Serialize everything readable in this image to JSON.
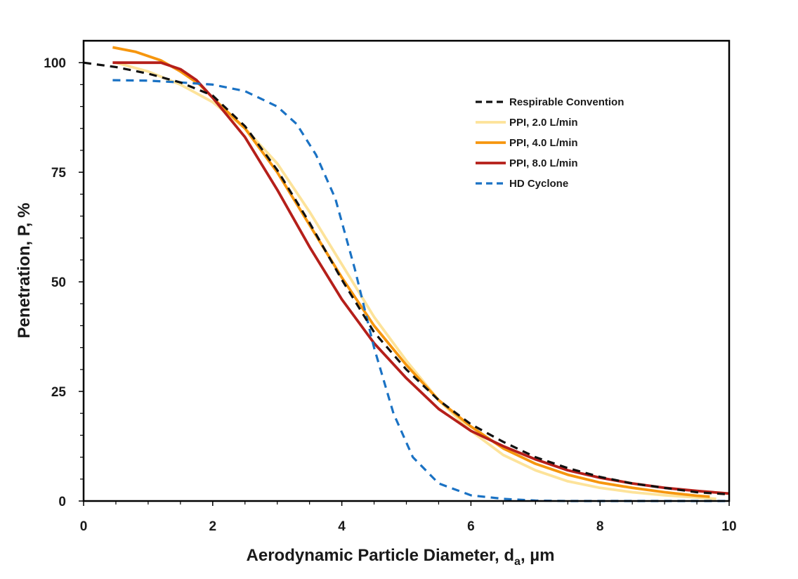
{
  "chart_data": {
    "type": "line",
    "xlabel": "Aerodynamic Particle Diameter, d",
    "xlabel_subscript": "a",
    "xlabel_unit": ", µm",
    "ylabel": "Penetration, P, %",
    "xlim": [
      0,
      10
    ],
    "ylim": [
      0,
      105
    ],
    "xticks": [
      "0",
      "2",
      "4",
      "6",
      "8",
      "10"
    ],
    "yticks": [
      "0",
      "25",
      "50",
      "75",
      "100"
    ],
    "grid": false,
    "legend_position": "top-right",
    "series": [
      {
        "name": "PPI, 2.0 L/min",
        "color": "#FDE39A",
        "dash": "solid",
        "points": [
          [
            0.5,
            100
          ],
          [
            1.0,
            98
          ],
          [
            1.5,
            95
          ],
          [
            2.0,
            91
          ],
          [
            2.5,
            85
          ],
          [
            3.0,
            77
          ],
          [
            3.5,
            66
          ],
          [
            4.0,
            54
          ],
          [
            4.5,
            42
          ],
          [
            5.0,
            32
          ],
          [
            5.5,
            23
          ],
          [
            6.0,
            16
          ],
          [
            6.5,
            10.5
          ],
          [
            7.0,
            7
          ],
          [
            7.5,
            4.5
          ],
          [
            8.0,
            3
          ],
          [
            8.5,
            2
          ],
          [
            9.0,
            1.3
          ],
          [
            9.5,
            0.8
          ],
          [
            9.8,
            0.5
          ]
        ]
      },
      {
        "name": "PPI, 4.0 L/min",
        "color": "#F6960E",
        "dash": "solid",
        "points": [
          [
            0.45,
            103.5
          ],
          [
            0.8,
            102.5
          ],
          [
            1.2,
            100.5
          ],
          [
            1.5,
            98
          ],
          [
            1.8,
            95
          ],
          [
            2.0,
            92
          ],
          [
            2.5,
            85
          ],
          [
            3.0,
            75
          ],
          [
            3.5,
            63
          ],
          [
            4.0,
            51
          ],
          [
            4.5,
            40
          ],
          [
            5.0,
            31
          ],
          [
            5.5,
            23
          ],
          [
            6.0,
            17
          ],
          [
            6.5,
            12
          ],
          [
            7.0,
            8.5
          ],
          [
            7.5,
            6
          ],
          [
            8.0,
            4.2
          ],
          [
            8.5,
            3
          ],
          [
            9.0,
            2
          ],
          [
            9.5,
            1.2
          ],
          [
            9.7,
            1
          ]
        ]
      },
      {
        "name": "PPI, 8.0 L/min",
        "color": "#B51F1A",
        "dash": "solid",
        "points": [
          [
            0.45,
            100
          ],
          [
            0.8,
            100
          ],
          [
            1.2,
            100
          ],
          [
            1.5,
            98.5
          ],
          [
            1.75,
            96
          ],
          [
            2.0,
            92
          ],
          [
            2.5,
            83
          ],
          [
            3.0,
            71
          ],
          [
            3.5,
            58
          ],
          [
            4.0,
            46
          ],
          [
            4.5,
            36
          ],
          [
            5.0,
            28
          ],
          [
            5.5,
            21
          ],
          [
            6.0,
            16
          ],
          [
            6.5,
            12.5
          ],
          [
            7.0,
            9.5
          ],
          [
            7.5,
            7
          ],
          [
            8.0,
            5.3
          ],
          [
            8.5,
            4
          ],
          [
            9.0,
            3
          ],
          [
            9.5,
            2.3
          ],
          [
            10.0,
            1.7
          ]
        ]
      },
      {
        "name": "HD Cyclone",
        "color": "#1A72C4",
        "dash": "dashed",
        "points": [
          [
            0.45,
            96
          ],
          [
            1.0,
            95.9
          ],
          [
            1.5,
            95.5
          ],
          [
            2.0,
            95
          ],
          [
            2.5,
            93.5
          ],
          [
            3.0,
            90
          ],
          [
            3.3,
            86
          ],
          [
            3.6,
            79
          ],
          [
            3.9,
            69
          ],
          [
            4.2,
            53
          ],
          [
            4.5,
            35
          ],
          [
            4.8,
            20
          ],
          [
            5.1,
            10
          ],
          [
            5.5,
            4
          ],
          [
            6.0,
            1.3
          ],
          [
            6.5,
            0.5
          ],
          [
            7.0,
            0.1
          ],
          [
            7.5,
            0
          ],
          [
            10.0,
            0
          ]
        ]
      },
      {
        "name": "Respirable Convention",
        "color": "#111111",
        "dash": "dashed",
        "points": [
          [
            0,
            100
          ],
          [
            0.5,
            99
          ],
          [
            1.0,
            97.5
          ],
          [
            1.5,
            95.5
          ],
          [
            2.0,
            92.5
          ],
          [
            2.5,
            85.5
          ],
          [
            3.0,
            75.5
          ],
          [
            3.5,
            63.5
          ],
          [
            4.0,
            50.5
          ],
          [
            4.5,
            38.5
          ],
          [
            5.0,
            30
          ],
          [
            5.5,
            23
          ],
          [
            6.0,
            17.5
          ],
          [
            6.5,
            13.5
          ],
          [
            7.0,
            10
          ],
          [
            7.5,
            7.5
          ],
          [
            8.0,
            5.5
          ],
          [
            8.5,
            4
          ],
          [
            9.0,
            3
          ],
          [
            9.5,
            2
          ],
          [
            10.0,
            1.5
          ]
        ]
      }
    ],
    "legend_order": [
      "Respirable Convention",
      "PPI, 2.0 L/min",
      "PPI, 4.0 L/min",
      "PPI, 8.0 L/min",
      "HD Cyclone"
    ]
  }
}
